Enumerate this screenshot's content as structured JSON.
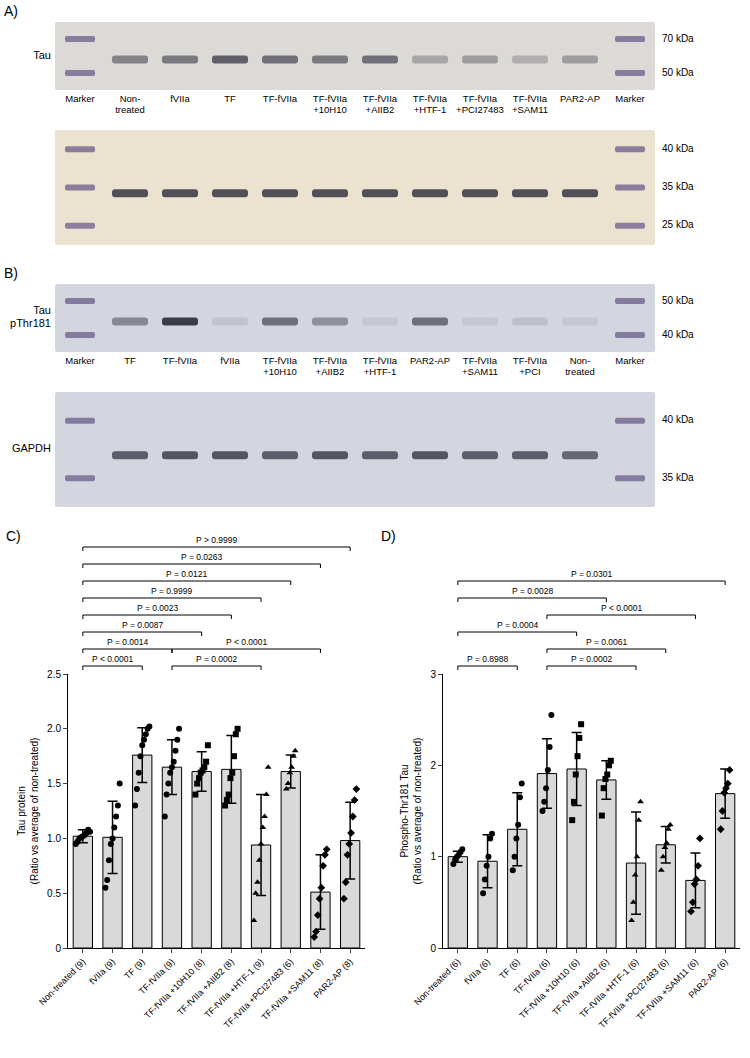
{
  "blots": [
    {
      "panel": "A)",
      "lanes": [
        "Marker",
        "Non-treated",
        "fVIIa",
        "TF",
        "TF-fVIIa",
        "TF-fVIIa +10H10",
        "TF-fVIIa +AIIB2",
        "TF-fVIIa +HTF-1",
        "TF-fVIIa +PCI27483",
        "TF-fVIIa +SAM11",
        "PAR2-AP",
        "Marker"
      ],
      "strips": [
        {
          "label": "Tau",
          "kda": [
            "70 kDa",
            "50 kDa"
          ],
          "color": "#dcdad6",
          "band_intensity": [
            null,
            0.5,
            0.55,
            0.7,
            0.6,
            0.55,
            0.6,
            0.3,
            0.35,
            0.25,
            0.35,
            null
          ]
        },
        {
          "kda": [
            "40 kDa",
            "35 kDa",
            "25 kDa"
          ],
          "color": "#ebe2cf",
          "band_intensity": [
            null,
            0.8,
            0.8,
            0.8,
            0.8,
            0.8,
            0.8,
            0.8,
            0.8,
            0.8,
            0.8,
            null
          ]
        }
      ]
    },
    {
      "panel": "B)",
      "lanes": [
        "Marker",
        "TF",
        "TF-fVIIa",
        "fVIIa",
        "TF-fVIIa +10H10",
        "TF-fVIIa +AIIB2",
        "TF-fVIIa +HTF-1",
        "PAR2-AP",
        "TF-fVIIa +SAM11",
        "TF-fVIIa +PCI",
        "Non-treated",
        "Marker"
      ],
      "strips": [
        {
          "label": "Tau pThr181",
          "kda": [
            "50 kDa",
            "40 kDa"
          ],
          "color": "#d3d6df",
          "band_intensity": [
            null,
            0.45,
            0.9,
            0.1,
            0.6,
            0.4,
            0.08,
            0.6,
            0.08,
            0.12,
            0.08,
            null
          ]
        },
        {
          "label": "GAPDH",
          "kda": [
            "40 kDa",
            "35 kDa"
          ],
          "color": "#d3d6df",
          "band_intensity": [
            null,
            0.7,
            0.75,
            0.75,
            0.7,
            0.75,
            0.7,
            0.75,
            0.7,
            0.7,
            0.65,
            null
          ]
        }
      ]
    }
  ],
  "chart_data": [
    {
      "type": "bar",
      "panel": "C)",
      "y_label": "Tau protein (Ratio vs average of non-treated)",
      "categories": [
        "Non-treated (9)",
        "fVIIa (9)",
        "TF (9)",
        "TF-fVIIa (9)",
        "TF-fVIIa +10H10 (8)",
        "TF-fVIIa +AIIB2 (8)",
        "TF-fVIIa +HTF-1 (9)",
        "TF-fVIIa +PCI27483 (6)",
        "TF-fVIIa +SAM11 (8)",
        "PAR2-AP (8)"
      ],
      "values": [
        1.02,
        1.01,
        1.76,
        1.65,
        1.61,
        1.63,
        0.94,
        1.61,
        0.51,
        0.98
      ],
      "sd": [
        0.06,
        0.33,
        0.25,
        0.25,
        0.18,
        0.31,
        0.46,
        0.15,
        0.34,
        0.35
      ],
      "points": [
        [
          0.95,
          0.97,
          1.0,
          1.01,
          1.02,
          1.03,
          1.05,
          1.08,
          1.06
        ],
        [
          0.55,
          0.62,
          0.8,
          0.95,
          1.0,
          1.1,
          1.2,
          1.3,
          1.5
        ],
        [
          1.3,
          1.45,
          1.6,
          1.75,
          1.85,
          1.9,
          1.95,
          2.0,
          2.02
        ],
        [
          1.2,
          1.4,
          1.5,
          1.6,
          1.65,
          1.7,
          1.8,
          1.9,
          2.0
        ],
        [
          1.4,
          1.5,
          1.55,
          1.6,
          1.62,
          1.65,
          1.7,
          1.85
        ],
        [
          1.3,
          1.35,
          1.4,
          1.55,
          1.6,
          1.75,
          1.95,
          2.0
        ],
        [
          0.25,
          0.5,
          0.6,
          0.8,
          0.95,
          1.1,
          1.2,
          1.4,
          1.65
        ],
        [
          1.45,
          1.5,
          1.6,
          1.65,
          1.75,
          1.8
        ],
        [
          0.1,
          0.15,
          0.3,
          0.45,
          0.55,
          0.75,
          0.85,
          0.9
        ],
        [
          0.45,
          0.6,
          0.85,
          0.95,
          1.05,
          1.2,
          1.35,
          1.45
        ]
      ],
      "markers": [
        "circle",
        "circle",
        "circle",
        "circle",
        "square",
        "square",
        "triangle-up",
        "triangle-up",
        "diamond",
        "diamond"
      ],
      "color": "#d9d9d9",
      "ylim": [
        0,
        2.5
      ],
      "yticks": [
        0,
        0.5,
        {
          "value": 1,
          "label": "1.0"
        },
        1.5,
        {
          "value": 2,
          "label": "2.0"
        },
        2.5
      ],
      "grid": false,
      "brackets": [
        {
          "from": "Non-treated (9)",
          "to": "TF (9)",
          "label": "P < 0.0001"
        },
        {
          "from": "TF-fVIIa (9)",
          "to": "TF-fVIIa +HTF-1 (9)",
          "label": "P = 0.0002"
        },
        {
          "from": "Non-treated (9)",
          "to": "TF-fVIIa (9)",
          "label": "P = 0.0014"
        },
        {
          "from": "TF-fVIIa (9)",
          "to": "TF-fVIIa +SAM11 (8)",
          "label": "P < 0.0001"
        },
        {
          "from": "Non-treated (9)",
          "to": "TF-fVIIa +10H10 (8)",
          "label": "P = 0.0087"
        },
        {
          "from": "Non-treated (9)",
          "to": "TF-fVIIa +AIIB2 (8)",
          "label": "P = 0.0023"
        },
        {
          "from": "Non-treated (9)",
          "to": "TF-fVIIa +HTF-1 (9)",
          "label": "P = 0.9999"
        },
        {
          "from": "Non-treated (9)",
          "to": "TF-fVIIa +PCI27483 (6)",
          "label": "P = 0.0121"
        },
        {
          "from": "Non-treated (9)",
          "to": "TF-fVIIa +SAM11 (8)",
          "label": "P = 0.0263"
        },
        {
          "from": "Non-treated (9)",
          "to": "PAR2-AP (8)",
          "label": "P > 0.9999"
        }
      ]
    },
    {
      "type": "bar",
      "panel": "D)",
      "y_label": "Phospho-Thr181 Tau (Ratio vs average of non-treated)",
      "categories": [
        "Non-treated (6)",
        "fVIIa (6)",
        "TF (6)",
        "TF-fVIIa (6)",
        "TF-fVIIa +10H10 (6)",
        "TF-fVIIa +AIIB2 (6)",
        "TF-fVIIa +HTF-1 (6)",
        "TF-fVIIa +PCI27483 (6)",
        "TF-fVIIa +SAM11 (6)",
        "PAR2-AP (6)"
      ],
      "values": [
        1.0,
        0.95,
        1.3,
        1.91,
        1.96,
        1.84,
        0.93,
        1.13,
        0.74,
        1.69
      ],
      "sd": [
        0.06,
        0.29,
        0.4,
        0.38,
        0.4,
        0.21,
        0.56,
        0.2,
        0.3,
        0.27
      ],
      "points": [
        [
          0.92,
          0.97,
          1.0,
          1.02,
          1.05,
          1.08
        ],
        [
          0.6,
          0.75,
          0.9,
          1.0,
          1.2,
          1.25
        ],
        [
          0.85,
          1.0,
          1.2,
          1.35,
          1.65,
          1.8
        ],
        [
          1.5,
          1.6,
          1.75,
          1.95,
          2.2,
          2.55
        ],
        [
          1.4,
          1.6,
          1.9,
          2.1,
          2.3,
          2.45
        ],
        [
          1.45,
          1.75,
          1.85,
          1.9,
          2.0,
          2.05
        ],
        [
          0.3,
          0.5,
          0.8,
          1.0,
          1.4,
          1.6
        ],
        [
          0.85,
          1.0,
          1.1,
          1.15,
          1.3,
          1.35
        ],
        [
          0.4,
          0.5,
          0.7,
          0.75,
          0.9,
          1.2
        ],
        [
          1.3,
          1.5,
          1.7,
          1.75,
          1.8,
          1.95
        ]
      ],
      "markers": [
        "circle",
        "circle",
        "circle",
        "circle",
        "square",
        "square",
        "triangle-up",
        "triangle-up",
        "diamond",
        "diamond"
      ],
      "color": "#d9d9d9",
      "ylim": [
        0,
        3
      ],
      "yticks": [
        0,
        1,
        2,
        3
      ],
      "grid": false,
      "brackets": [
        {
          "from": "TF-fVIIa (6)",
          "to": "TF-fVIIa +HTF-1 (6)",
          "label": "P = 0.0002"
        },
        {
          "from": "Non-treated (6)",
          "to": "TF (6)",
          "label": "P = 0.8988"
        },
        {
          "from": "TF-fVIIa (6)",
          "to": "TF-fVIIa +PCI27483 (6)",
          "label": "P = 0.0061"
        },
        {
          "from": "Non-treated (6)",
          "to": "TF-fVIIa +10H10 (6)",
          "label": "P = 0.0004"
        },
        {
          "from": "TF-fVIIa (6)",
          "to": "TF-fVIIa +SAM11 (6)",
          "label": "P < 0.0001"
        },
        {
          "from": "Non-treated (6)",
          "to": "TF-fVIIa +AIIB2 (6)",
          "label": "P = 0.0028"
        },
        {
          "from": "Non-treated (6)",
          "to": "PAR2-AP (6)",
          "label": "P = 0.0301"
        }
      ]
    }
  ]
}
